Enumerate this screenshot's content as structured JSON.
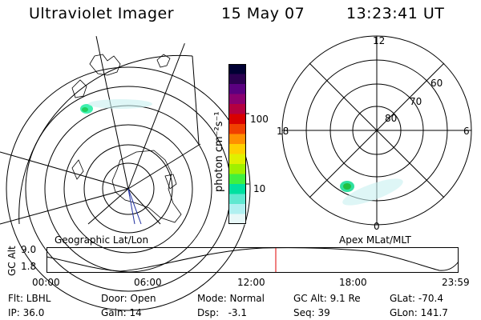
{
  "header": {
    "instrument": "Ultraviolet Imager",
    "date": "15 May 07",
    "time": "13:23:41 UT"
  },
  "geo_panel": {
    "label": "Geographic Lat/Lon"
  },
  "colorbar": {
    "label": "photon cm⁻²s⁻¹",
    "ticks": [
      "100",
      "10"
    ],
    "colors": [
      "#000033",
      "#2b0050",
      "#5a0080",
      "#8a0070",
      "#b40040",
      "#d80000",
      "#f04000",
      "#ff9000",
      "#ffd000",
      "#e0f000",
      "#a0f000",
      "#40f040",
      "#00e0a0",
      "#60e8d0",
      "#b0f0f0",
      "#e8f8f8"
    ]
  },
  "polar_panel": {
    "label": "Apex MLat/MLT",
    "mlt_labels": {
      "top": "12",
      "left": "18",
      "right": "6",
      "bottom": "0"
    },
    "lat_labels": [
      "60",
      "70",
      "80"
    ]
  },
  "altitude_plot": {
    "ylabel": "GC Alt",
    "yticks": [
      "9.0",
      "1.8"
    ],
    "xticks": [
      "00:00",
      "06:00",
      "12:00",
      "18:00",
      "23:59"
    ]
  },
  "status": {
    "row1": [
      {
        "label": "Flt: LBHL"
      },
      {
        "label": "Door: Open"
      },
      {
        "label": "Mode: Normal"
      },
      {
        "label": "GC Alt: 9.1 Re"
      },
      {
        "label": "GLat: -70.4"
      }
    ],
    "row2": [
      {
        "label": "IP: 36.0"
      },
      {
        "label": "Gain: 14"
      },
      {
        "label": "Dsp:   -3.1"
      },
      {
        "label": "Seq: 39"
      },
      {
        "label": "GLon: 141.7"
      }
    ]
  }
}
